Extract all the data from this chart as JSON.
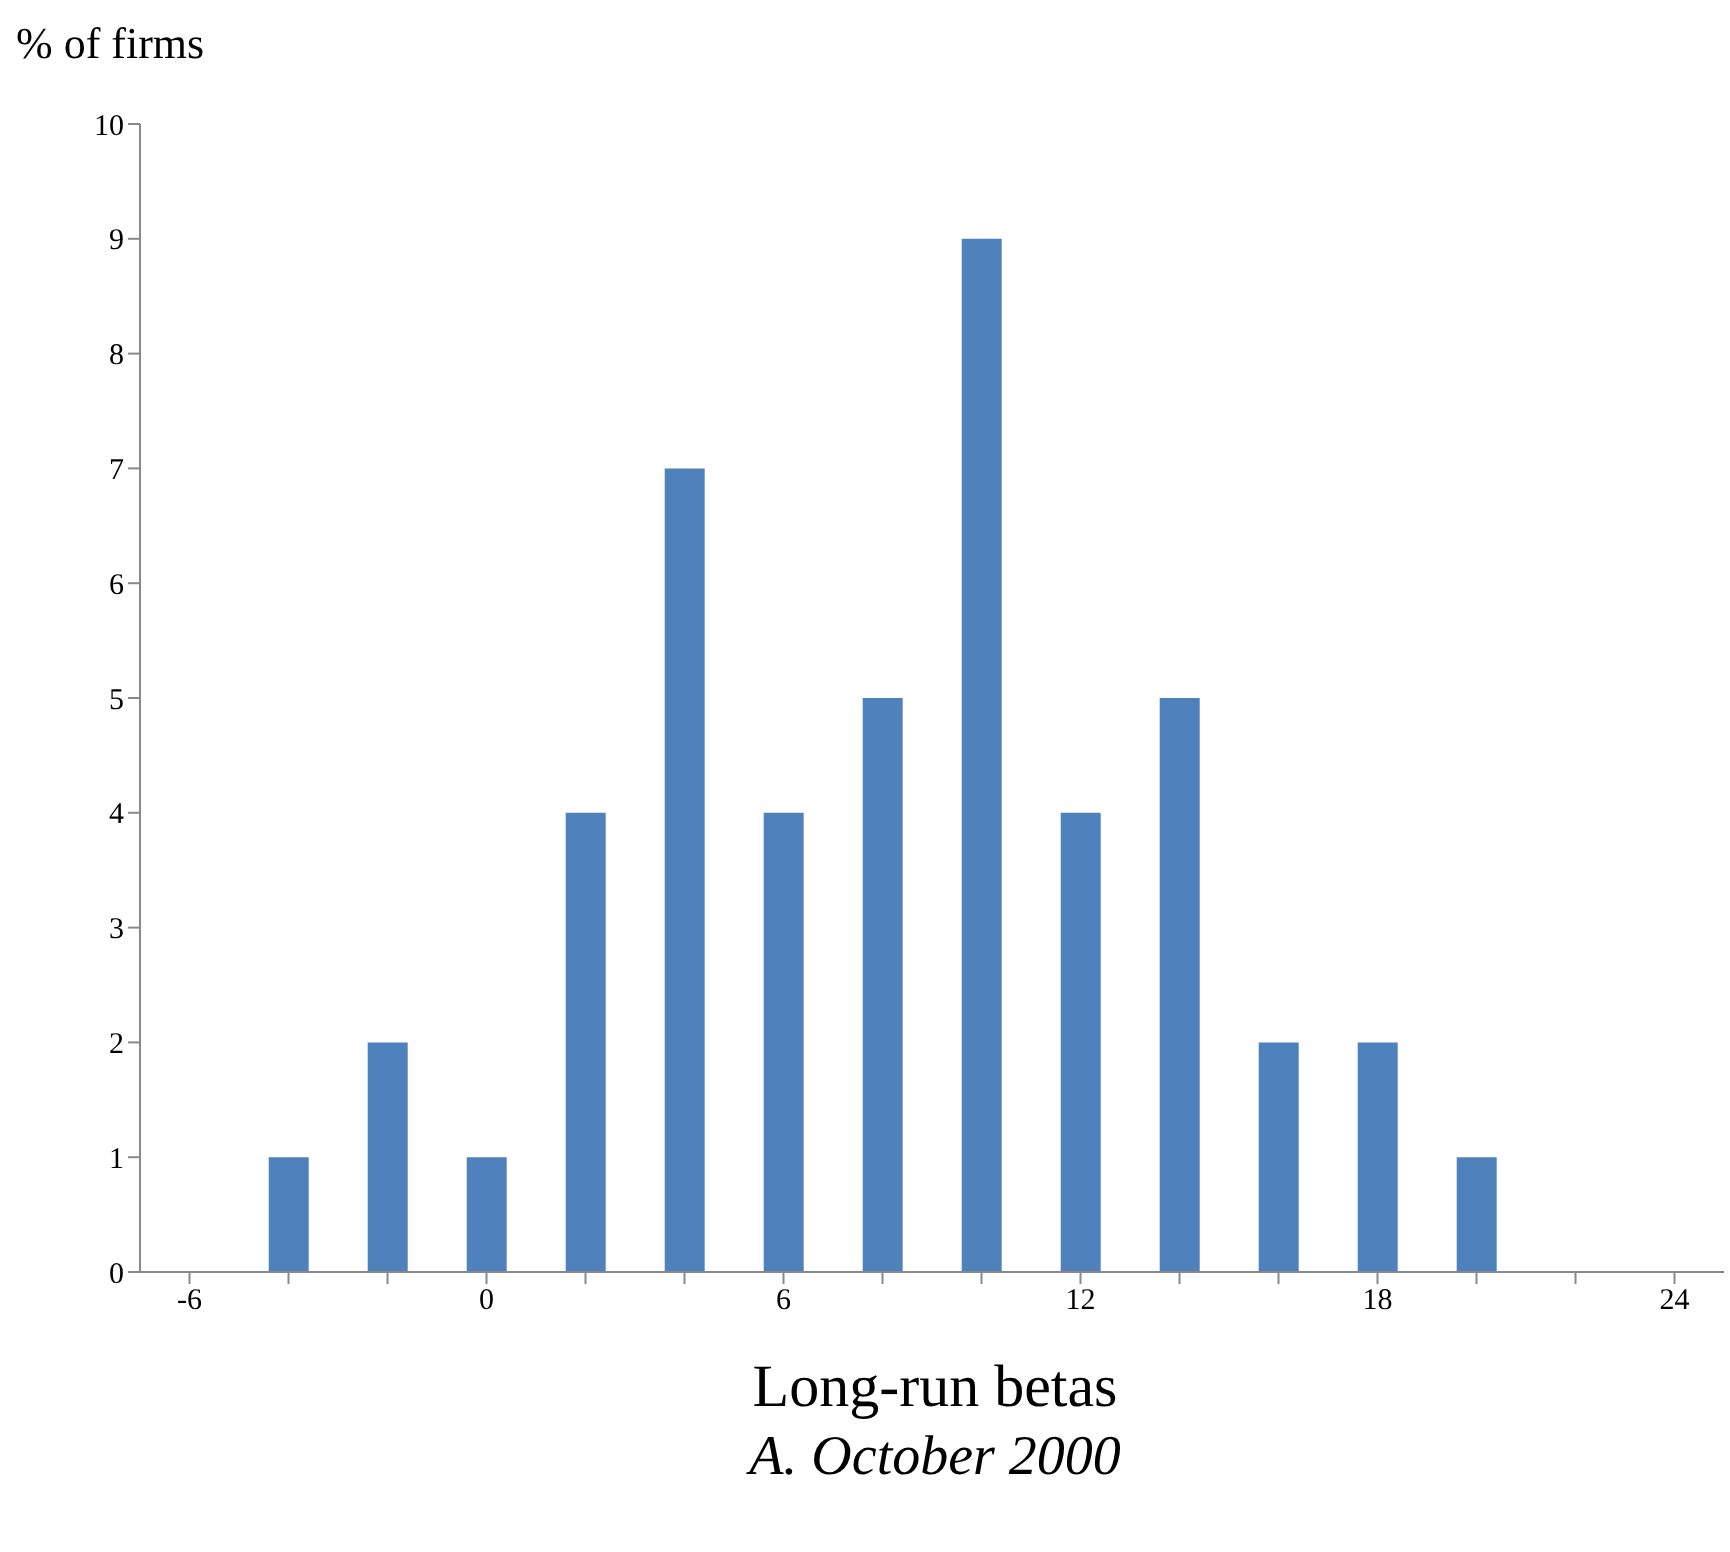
{
  "chart_data": {
    "type": "bar",
    "title": "A. October 2000",
    "xlabel": "Long-run betas",
    "ylabel": "% of firms",
    "categories": [
      "-6",
      null,
      null,
      "0",
      null,
      null,
      "6",
      null,
      null,
      "12",
      null,
      null,
      "18",
      null,
      null,
      "24"
    ],
    "values": [
      0,
      1,
      2,
      1,
      4,
      7,
      4,
      5,
      9,
      4,
      5,
      2,
      2,
      1,
      0,
      0
    ],
    "color": "#4f81bd",
    "ylim": [
      0,
      10
    ],
    "yticks": [
      0,
      1,
      2,
      3,
      4,
      5,
      6,
      7,
      8,
      9,
      10
    ],
    "grid": false,
    "legend": false
  }
}
